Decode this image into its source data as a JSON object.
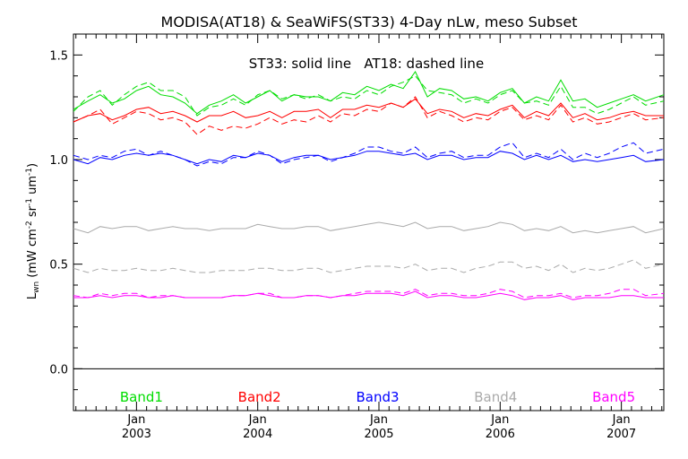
{
  "chart_data": {
    "type": "line",
    "title": "MODISA(AT18) & SeaWiFS(ST33) 4-Day nLw, meso Subset",
    "annotation": "ST33: solid line   AT18: dashed line",
    "ylabel_main": "L",
    "ylabel_sub": "wn",
    "ylabel_units": "(mW cm",
    "ylabel_exp1": "-2",
    "ylabel_sr": " sr",
    "ylabel_exp2": "-1",
    "ylabel_um": " um",
    "ylabel_exp3": "-1",
    "ylabel_close": ")",
    "ylim": [
      -0.2,
      1.6
    ],
    "yticks": [
      0.0,
      0.5,
      1.0,
      1.5
    ],
    "ytick_labels": [
      "0.0",
      "0.5",
      "1.0",
      "1.5"
    ],
    "xlim": [
      2002.48,
      2007.35
    ],
    "xticks": [
      {
        "x": 2003.0,
        "month": "Jan",
        "year": "2003"
      },
      {
        "x": 2004.0,
        "month": "Jan",
        "year": "2004"
      },
      {
        "x": 2005.0,
        "month": "Jan",
        "year": "2005"
      },
      {
        "x": 2006.0,
        "month": "Jan",
        "year": "2006"
      },
      {
        "x": 2007.0,
        "month": "Jan",
        "year": "2007"
      }
    ],
    "x": [
      2002.48,
      2002.6,
      2002.7,
      2002.8,
      2002.9,
      2003.0,
      2003.1,
      2003.2,
      2003.3,
      2003.4,
      2003.5,
      2003.6,
      2003.7,
      2003.8,
      2003.9,
      2004.0,
      2004.1,
      2004.2,
      2004.3,
      2004.4,
      2004.5,
      2004.6,
      2004.7,
      2004.8,
      2004.9,
      2005.0,
      2005.1,
      2005.2,
      2005.3,
      2005.4,
      2005.5,
      2005.6,
      2005.7,
      2005.8,
      2005.9,
      2006.0,
      2006.1,
      2006.2,
      2006.3,
      2006.4,
      2006.5,
      2006.6,
      2006.7,
      2006.8,
      2006.9,
      2007.0,
      2007.1,
      2007.2,
      2007.35
    ],
    "series": [
      {
        "name": "Band1",
        "color": "#00dd00",
        "solid": [
          1.24,
          1.28,
          1.31,
          1.27,
          1.29,
          1.33,
          1.35,
          1.31,
          1.3,
          1.27,
          1.22,
          1.26,
          1.28,
          1.31,
          1.27,
          1.3,
          1.33,
          1.28,
          1.31,
          1.3,
          1.3,
          1.28,
          1.32,
          1.31,
          1.35,
          1.33,
          1.36,
          1.34,
          1.42,
          1.3,
          1.34,
          1.33,
          1.29,
          1.3,
          1.28,
          1.32,
          1.34,
          1.27,
          1.3,
          1.28,
          1.38,
          1.28,
          1.29,
          1.25,
          1.27,
          1.29,
          1.31,
          1.28,
          1.31
        ],
        "dashed": [
          1.23,
          1.3,
          1.33,
          1.26,
          1.31,
          1.35,
          1.37,
          1.33,
          1.33,
          1.3,
          1.21,
          1.25,
          1.26,
          1.29,
          1.26,
          1.31,
          1.33,
          1.29,
          1.31,
          1.29,
          1.31,
          1.28,
          1.3,
          1.29,
          1.33,
          1.31,
          1.35,
          1.37,
          1.4,
          1.33,
          1.32,
          1.31,
          1.27,
          1.29,
          1.27,
          1.31,
          1.33,
          1.27,
          1.28,
          1.26,
          1.35,
          1.25,
          1.25,
          1.22,
          1.24,
          1.27,
          1.3,
          1.26,
          1.28
        ]
      },
      {
        "name": "Band2",
        "color": "#ff0000",
        "solid": [
          1.18,
          1.21,
          1.22,
          1.19,
          1.21,
          1.24,
          1.25,
          1.22,
          1.23,
          1.21,
          1.18,
          1.21,
          1.21,
          1.23,
          1.2,
          1.21,
          1.23,
          1.2,
          1.23,
          1.23,
          1.24,
          1.2,
          1.24,
          1.24,
          1.26,
          1.25,
          1.27,
          1.25,
          1.29,
          1.22,
          1.24,
          1.23,
          1.2,
          1.22,
          1.21,
          1.24,
          1.26,
          1.2,
          1.23,
          1.21,
          1.27,
          1.2,
          1.22,
          1.19,
          1.2,
          1.22,
          1.23,
          1.21,
          1.21
        ],
        "dashed": [
          1.18,
          1.21,
          1.24,
          1.17,
          1.2,
          1.23,
          1.22,
          1.19,
          1.2,
          1.18,
          1.12,
          1.16,
          1.14,
          1.16,
          1.15,
          1.17,
          1.2,
          1.17,
          1.19,
          1.18,
          1.21,
          1.18,
          1.22,
          1.21,
          1.24,
          1.23,
          1.27,
          1.25,
          1.3,
          1.2,
          1.23,
          1.21,
          1.18,
          1.2,
          1.19,
          1.23,
          1.25,
          1.19,
          1.21,
          1.19,
          1.26,
          1.18,
          1.2,
          1.17,
          1.18,
          1.2,
          1.22,
          1.19,
          1.2
        ]
      },
      {
        "name": "Band3",
        "color": "#0000ff",
        "solid": [
          1.0,
          0.98,
          1.01,
          1.0,
          1.02,
          1.03,
          1.02,
          1.03,
          1.02,
          1.0,
          0.98,
          1.0,
          0.99,
          1.02,
          1.01,
          1.03,
          1.02,
          0.99,
          1.01,
          1.02,
          1.02,
          1.0,
          1.01,
          1.02,
          1.04,
          1.04,
          1.03,
          1.02,
          1.03,
          1.0,
          1.02,
          1.02,
          1.0,
          1.01,
          1.01,
          1.04,
          1.03,
          1.0,
          1.02,
          1.0,
          1.02,
          0.99,
          1.0,
          0.99,
          1.0,
          1.01,
          1.02,
          0.99,
          1.0
        ],
        "dashed": [
          1.02,
          1.0,
          1.02,
          1.01,
          1.04,
          1.05,
          1.02,
          1.04,
          1.02,
          1.0,
          0.97,
          0.99,
          0.98,
          1.01,
          1.01,
          1.04,
          1.02,
          0.98,
          1.0,
          1.01,
          1.02,
          0.99,
          1.01,
          1.03,
          1.06,
          1.06,
          1.04,
          1.03,
          1.06,
          1.01,
          1.03,
          1.04,
          1.01,
          1.02,
          1.02,
          1.06,
          1.08,
          1.01,
          1.03,
          1.01,
          1.05,
          1.0,
          1.03,
          1.01,
          1.03,
          1.06,
          1.08,
          1.03,
          1.05
        ]
      },
      {
        "name": "Band4",
        "color": "#aaaaaa",
        "solid": [
          0.67,
          0.65,
          0.68,
          0.67,
          0.68,
          0.68,
          0.66,
          0.67,
          0.68,
          0.67,
          0.67,
          0.66,
          0.67,
          0.67,
          0.67,
          0.69,
          0.68,
          0.67,
          0.67,
          0.68,
          0.68,
          0.66,
          0.67,
          0.68,
          0.69,
          0.7,
          0.69,
          0.68,
          0.7,
          0.67,
          0.68,
          0.68,
          0.66,
          0.67,
          0.68,
          0.7,
          0.69,
          0.66,
          0.67,
          0.66,
          0.68,
          0.65,
          0.66,
          0.65,
          0.66,
          0.67,
          0.68,
          0.65,
          0.67
        ],
        "dashed": [
          0.48,
          0.46,
          0.48,
          0.47,
          0.47,
          0.48,
          0.47,
          0.47,
          0.48,
          0.47,
          0.46,
          0.46,
          0.47,
          0.47,
          0.47,
          0.48,
          0.48,
          0.47,
          0.47,
          0.48,
          0.48,
          0.46,
          0.47,
          0.48,
          0.49,
          0.49,
          0.49,
          0.48,
          0.5,
          0.47,
          0.48,
          0.48,
          0.46,
          0.48,
          0.49,
          0.51,
          0.51,
          0.48,
          0.49,
          0.47,
          0.5,
          0.46,
          0.48,
          0.47,
          0.48,
          0.5,
          0.52,
          0.48,
          0.5
        ]
      },
      {
        "name": "Band5",
        "color": "#ff00ff",
        "solid": [
          0.34,
          0.34,
          0.35,
          0.34,
          0.35,
          0.35,
          0.34,
          0.34,
          0.35,
          0.34,
          0.34,
          0.34,
          0.34,
          0.35,
          0.35,
          0.36,
          0.35,
          0.34,
          0.34,
          0.35,
          0.35,
          0.34,
          0.35,
          0.35,
          0.36,
          0.36,
          0.36,
          0.35,
          0.37,
          0.34,
          0.35,
          0.35,
          0.34,
          0.34,
          0.35,
          0.36,
          0.35,
          0.33,
          0.34,
          0.34,
          0.35,
          0.33,
          0.34,
          0.34,
          0.34,
          0.35,
          0.35,
          0.34,
          0.34
        ],
        "dashed": [
          0.35,
          0.34,
          0.36,
          0.35,
          0.36,
          0.36,
          0.34,
          0.35,
          0.35,
          0.34,
          0.34,
          0.34,
          0.34,
          0.35,
          0.35,
          0.36,
          0.36,
          0.34,
          0.34,
          0.35,
          0.35,
          0.34,
          0.35,
          0.36,
          0.37,
          0.37,
          0.37,
          0.36,
          0.38,
          0.35,
          0.36,
          0.36,
          0.35,
          0.35,
          0.36,
          0.38,
          0.37,
          0.34,
          0.35,
          0.35,
          0.36,
          0.34,
          0.35,
          0.35,
          0.36,
          0.38,
          0.38,
          0.35,
          0.36
        ]
      }
    ],
    "zero_line": true,
    "legend_placement": "bottom-inside"
  }
}
